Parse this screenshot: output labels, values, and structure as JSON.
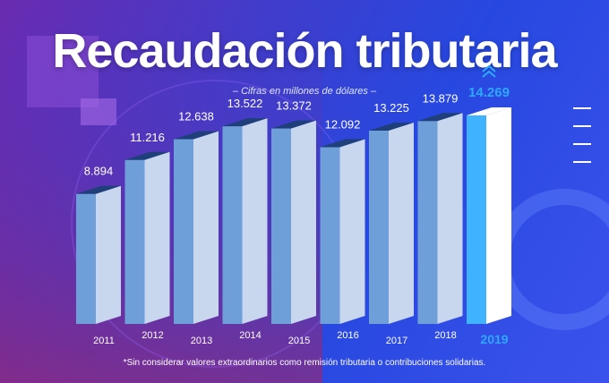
{
  "title": "Recaudación tributaria",
  "subtitle": "– Cifras en millones de dólares –",
  "footnote": "*Sin considerar valores extraordinarios como remisión tributaria o contribuciones solidarias.",
  "colors": {
    "highlight": "#2ea8ff",
    "bar_front": "#c8d6ee",
    "bar_side": "#6f9fd8",
    "bar_top": "#1e3f7a"
  },
  "chart_data": {
    "type": "bar",
    "title": "Recaudación tributaria",
    "subtitle": "– Cifras en millones de dólares –",
    "categories": [
      "2011",
      "2012",
      "2013",
      "2014",
      "2015",
      "2016",
      "2017",
      "2018",
      "2019"
    ],
    "values": [
      8894,
      11216,
      12638,
      13522,
      13372,
      12092,
      13225,
      13879,
      14269
    ],
    "labels": [
      "8.894",
      "11.216",
      "12.638",
      "13.522",
      "13.372",
      "12.092",
      "13.225",
      "13.879",
      "14.269"
    ],
    "highlight_category": "2019",
    "ylim": [
      0,
      15000
    ],
    "grid": false,
    "legend": "none"
  }
}
